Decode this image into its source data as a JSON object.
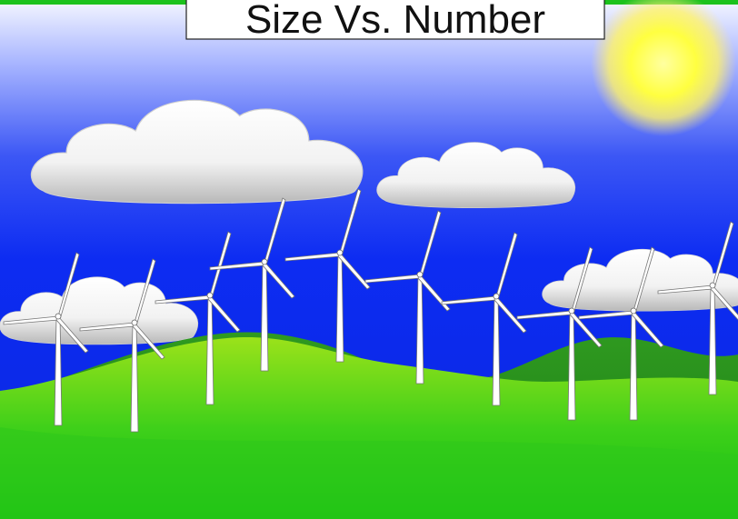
{
  "title": "Size Vs. Number"
}
